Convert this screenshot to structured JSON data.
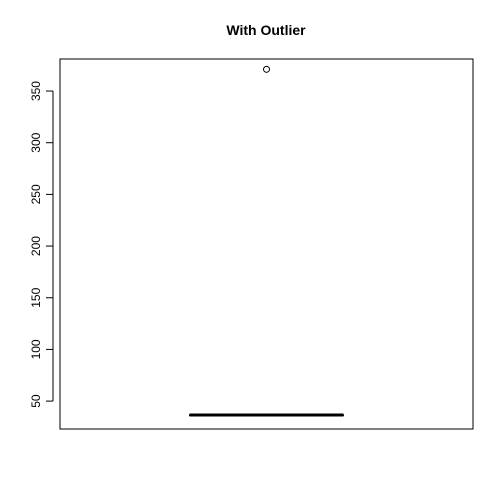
{
  "chart_data": {
    "type": "boxplot",
    "title": "With Outlier",
    "xlabel": "",
    "ylabel": "",
    "y_ticks": [
      50,
      100,
      150,
      200,
      250,
      300,
      350
    ],
    "ylim": [
      23,
      381
    ],
    "box": {
      "min": 36.5,
      "q1": 36.5,
      "median": 36.5,
      "q3": 36.5,
      "max": 36.5
    },
    "outliers": [
      371
    ],
    "grid": false,
    "legend": "none"
  }
}
